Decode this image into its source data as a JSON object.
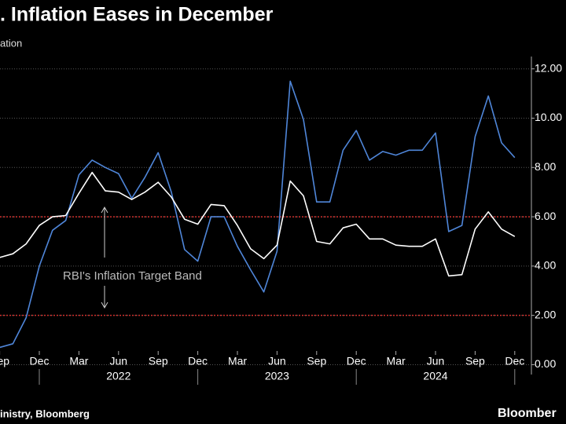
{
  "chart_data": {
    "type": "line",
    "title": ". Inflation Eases in December",
    "subtitle": "ation",
    "source": "inistry, Bloomberg",
    "logo": "Bloomber",
    "annotation": "RBI's Inflation Target Band",
    "target_band": [
      2,
      6
    ],
    "target_band_color": "#d0312d",
    "categories": [
      "Sep",
      null,
      null,
      "Dec",
      null,
      null,
      "Mar",
      null,
      null,
      "Jun",
      null,
      null,
      "Sep",
      null,
      null,
      "Dec",
      null,
      null,
      "Mar",
      null,
      null,
      "Jun",
      null,
      null,
      "Sep",
      null,
      null,
      "Dec",
      null,
      null,
      "Mar",
      null,
      null,
      "Jun",
      null,
      null,
      "Sep",
      null,
      null,
      "Dec"
    ],
    "years": [
      "2022",
      "2023",
      "2024"
    ],
    "series": [
      {
        "color": "#4f86d9",
        "values": [
          0.7,
          0.85,
          1.9,
          4.0,
          5.45,
          5.85,
          7.7,
          8.3,
          8.0,
          7.75,
          6.75,
          7.6,
          8.6,
          7.0,
          4.67,
          4.2,
          6.0,
          6.0,
          4.8,
          3.85,
          2.95,
          4.6,
          11.5,
          9.95,
          6.6,
          6.6,
          8.7,
          9.5,
          8.3,
          8.65,
          8.5,
          8.7,
          8.7,
          9.4,
          5.4,
          5.65,
          9.25,
          10.9,
          9.0,
          8.4
        ]
      },
      {
        "color": "#ffffff",
        "values": [
          4.35,
          4.5,
          4.9,
          5.65,
          6.0,
          6.05,
          6.95,
          7.8,
          7.05,
          7.0,
          6.7,
          7.0,
          7.4,
          6.8,
          5.9,
          5.7,
          6.5,
          6.45,
          5.65,
          4.7,
          4.3,
          4.85,
          7.45,
          6.85,
          5.0,
          4.9,
          5.55,
          5.7,
          5.1,
          5.1,
          4.85,
          4.8,
          4.8,
          5.1,
          3.6,
          3.65,
          5.5,
          6.2,
          5.5,
          5.2
        ]
      }
    ],
    "ylim": [
      -0.4,
      12.5
    ],
    "yticks": [
      {
        "value": 0,
        "label": "0.00"
      },
      {
        "value": 2,
        "label": "2.00"
      },
      {
        "value": 4,
        "label": "4.00"
      },
      {
        "value": 6,
        "label": "6.00"
      },
      {
        "value": 8,
        "label": "8.00"
      },
      {
        "value": 10,
        "label": "10.00"
      },
      {
        "value": 12,
        "label": "12.00"
      }
    ],
    "grid": true
  }
}
